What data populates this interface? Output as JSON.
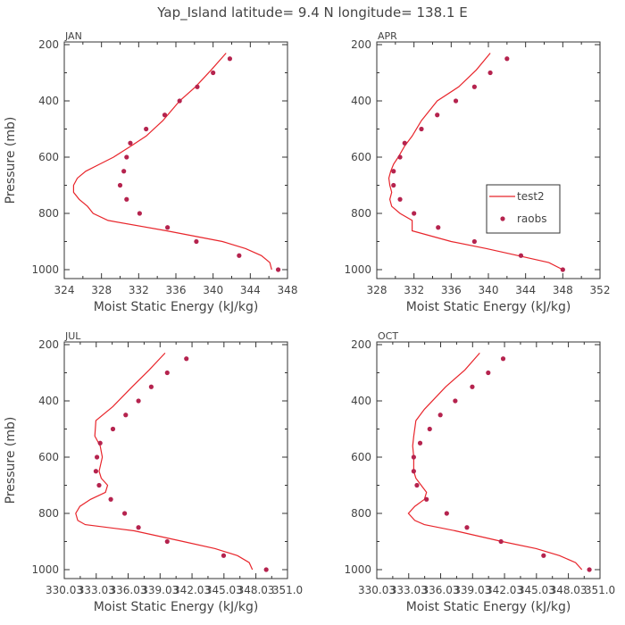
{
  "title": "Yap_Island  latitude= 9.4 N longitude= 138.1 E",
  "colors": {
    "model": "#e8252b",
    "obs": "#b5234e",
    "axis": "#333333",
    "text": "#444444"
  },
  "legend": {
    "placement": "inside-right (APR panel)",
    "model_label": "test2",
    "obs_label": "raobs"
  },
  "chart_data": [
    {
      "type": "line",
      "panel": "JAN",
      "xlabel": "Moist Static Energy (kJ/kg)",
      "ylabel": "Pressure (mb)",
      "xlim": [
        324,
        348
      ],
      "ylim": [
        1000,
        200
      ],
      "xticks": [
        324,
        328,
        332,
        336,
        340,
        344,
        348
      ],
      "xtick_labels": [
        "324",
        "328",
        "332",
        "336",
        "340",
        "344",
        "348"
      ],
      "yticks": [
        200,
        400,
        600,
        800,
        1000
      ],
      "ytick_labels": [
        "200",
        "400",
        "600",
        "800",
        "1000"
      ],
      "series": [
        {
          "name": "test2",
          "style": "line",
          "x": [
            346.3,
            346.1,
            345.2,
            343.5,
            341.0,
            335.0,
            328.7,
            327.1,
            326.5,
            325.6,
            325.0,
            325.0,
            325.4,
            326.3,
            327.8,
            329.3,
            331.2,
            332.8,
            334.6,
            336.4,
            338.1,
            339.8,
            341.4
          ],
          "y": [
            1000,
            975,
            950,
            925,
            900,
            862,
            825,
            800,
            775,
            750,
            725,
            700,
            675,
            650,
            625,
            600,
            560,
            525,
            470,
            400,
            350,
            290,
            230
          ]
        },
        {
          "name": "raobs",
          "style": "points",
          "x": [
            347.0,
            342.8,
            338.2,
            335.1,
            332.1,
            330.7,
            330.0,
            330.4,
            330.7,
            331.1,
            332.8,
            334.8,
            336.4,
            338.3,
            340.0,
            341.8
          ],
          "y": [
            1000,
            950,
            900,
            850,
            800,
            750,
            700,
            650,
            600,
            550,
            500,
            450,
            400,
            350,
            300,
            250
          ]
        }
      ]
    },
    {
      "type": "line",
      "panel": "APR",
      "xlabel": "Moist Static Energy (kJ/kg)",
      "ylabel": "",
      "xlim": [
        328,
        352
      ],
      "ylim": [
        1000,
        200
      ],
      "xticks": [
        328,
        332,
        336,
        340,
        344,
        348,
        352
      ],
      "xtick_labels": [
        "328",
        "332",
        "336",
        "340",
        "344",
        "348",
        "352"
      ],
      "yticks": [
        200,
        400,
        600,
        800,
        1000
      ],
      "ytick_labels": [
        "200",
        "400",
        "600",
        "800",
        "1000"
      ],
      "series": [
        {
          "name": "test2",
          "style": "line",
          "x": [
            348.0,
            346.5,
            343.2,
            339.8,
            336.0,
            331.8,
            331.8,
            330.5,
            329.6,
            329.4,
            329.6,
            329.4,
            329.3,
            329.5,
            329.8,
            330.3,
            331.0,
            331.8,
            332.8,
            334.5,
            336.8,
            338.7,
            340.2
          ],
          "y": [
            1000,
            975,
            950,
            925,
            900,
            862,
            825,
            800,
            775,
            750,
            725,
            700,
            675,
            650,
            625,
            600,
            560,
            525,
            470,
            400,
            350,
            290,
            230
          ]
        },
        {
          "name": "raobs",
          "style": "points",
          "x": [
            348.0,
            343.5,
            338.5,
            334.6,
            332.0,
            330.5,
            329.8,
            329.8,
            330.5,
            331.0,
            332.8,
            334.5,
            336.5,
            338.5,
            340.2,
            342.0
          ],
          "y": [
            1000,
            950,
            900,
            850,
            800,
            750,
            700,
            650,
            600,
            550,
            500,
            450,
            400,
            350,
            300,
            250
          ]
        }
      ]
    },
    {
      "type": "line",
      "panel": "JUL",
      "xlabel": "Moist Static Energy (kJ/kg)",
      "ylabel": "Pressure (mb)",
      "xlim": [
        330.03,
        351.0
      ],
      "ylim": [
        1000,
        200
      ],
      "xticks": [
        330.03,
        333.03,
        336.03,
        339.03,
        342.03,
        345.03,
        348.03,
        351.0
      ],
      "xtick_labels": [
        "330.03",
        "333.03",
        "336.03",
        "339.03",
        "342.03",
        "345.03",
        "348.03",
        "351.0"
      ],
      "yticks": [
        200,
        400,
        600,
        800,
        1000
      ],
      "ytick_labels": [
        "200",
        "400",
        "600",
        "800",
        "1000"
      ],
      "series": [
        {
          "name": "test2",
          "style": "line",
          "x": [
            347.7,
            347.4,
            346.3,
            344.2,
            341.2,
            336.6,
            332.0,
            331.3,
            331.1,
            331.5,
            332.5,
            333.9,
            334.1,
            333.5,
            333.3,
            333.6,
            333.4,
            332.9,
            333.0,
            334.6,
            336.4,
            338.0,
            339.5
          ],
          "y": [
            1000,
            975,
            950,
            925,
            900,
            862,
            840,
            825,
            800,
            775,
            750,
            725,
            700,
            675,
            650,
            600,
            560,
            525,
            470,
            420,
            350,
            290,
            230
          ]
        },
        {
          "name": "raobs",
          "style": "points",
          "x": [
            349.0,
            345.0,
            339.7,
            337.0,
            335.7,
            334.4,
            333.3,
            333.0,
            333.1,
            333.4,
            334.6,
            335.8,
            337.0,
            338.2,
            339.7,
            341.5
          ],
          "y": [
            1000,
            950,
            900,
            850,
            800,
            750,
            700,
            650,
            600,
            550,
            500,
            450,
            400,
            350,
            300,
            250
          ]
        }
      ]
    },
    {
      "type": "line",
      "panel": "OCT",
      "xlabel": "Moist Static Energy (kJ/kg)",
      "ylabel": "",
      "xlim": [
        330.03,
        351.0
      ],
      "ylim": [
        1000,
        200
      ],
      "xticks": [
        330.03,
        333.03,
        336.03,
        339.03,
        342.03,
        345.03,
        348.03,
        351.0
      ],
      "xtick_labels": [
        "330.03",
        "333.03",
        "336.03",
        "339.03",
        "342.03",
        "345.03",
        "348.03",
        "351.0"
      ],
      "yticks": [
        200,
        400,
        600,
        800,
        1000
      ],
      "ytick_labels": [
        "200",
        "400",
        "600",
        "800",
        "1000"
      ],
      "series": [
        {
          "name": "test2",
          "style": "line",
          "x": [
            349.3,
            348.7,
            347.2,
            345.0,
            341.8,
            337.4,
            334.5,
            333.6,
            333.0,
            333.6,
            334.5,
            334.7,
            334.2,
            333.7,
            333.5,
            333.5,
            333.4,
            333.5,
            333.7,
            334.5,
            336.5,
            338.3,
            339.7
          ],
          "y": [
            1000,
            975,
            950,
            925,
            900,
            862,
            840,
            825,
            800,
            775,
            750,
            725,
            700,
            675,
            650,
            600,
            560,
            525,
            470,
            430,
            350,
            290,
            230
          ]
        },
        {
          "name": "raobs",
          "style": "points",
          "x": [
            350.0,
            345.7,
            341.7,
            338.5,
            336.6,
            334.7,
            333.8,
            333.5,
            333.5,
            334.1,
            335.0,
            336.0,
            337.4,
            339.0,
            340.5,
            341.9
          ],
          "y": [
            1000,
            950,
            900,
            850,
            800,
            750,
            700,
            650,
            600,
            550,
            500,
            450,
            400,
            350,
            300,
            250
          ]
        }
      ]
    }
  ]
}
